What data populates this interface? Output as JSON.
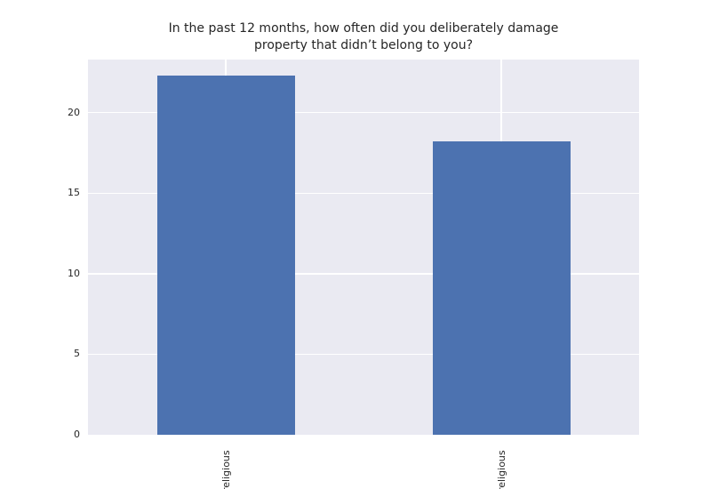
{
  "figure": {
    "title": "In the past 12 months, how often did you deliberately damage property that didn’t belong to you?",
    "title_lines": [
      "In the past 12 months, how often did you deliberately damage",
      "property that didn’t belong to you?"
    ]
  },
  "chart_data": {
    "type": "bar",
    "title": "In the past 12 months, how often did you deliberately damage property that didn’t belong to you?",
    "categories": [
      "religious",
      "religious"
    ],
    "categories_note": "x tick labels are rotated 90 degrees and clipped by the image bottom edge; only the trailing '...religious' portion is visible for both bars",
    "values": [
      22.3,
      18.2
    ],
    "xlabel": "",
    "ylabel": "",
    "yticks": [
      0,
      5,
      10,
      15,
      20
    ],
    "ylim": [
      0,
      23.3
    ],
    "grid": true,
    "legend": false,
    "style": {
      "bar_color": "#4c72b0",
      "axes_background": "#eaeaf2",
      "grid_color": "#ffffff",
      "text_color": "#262626",
      "figure_background": "#ffffff"
    }
  }
}
